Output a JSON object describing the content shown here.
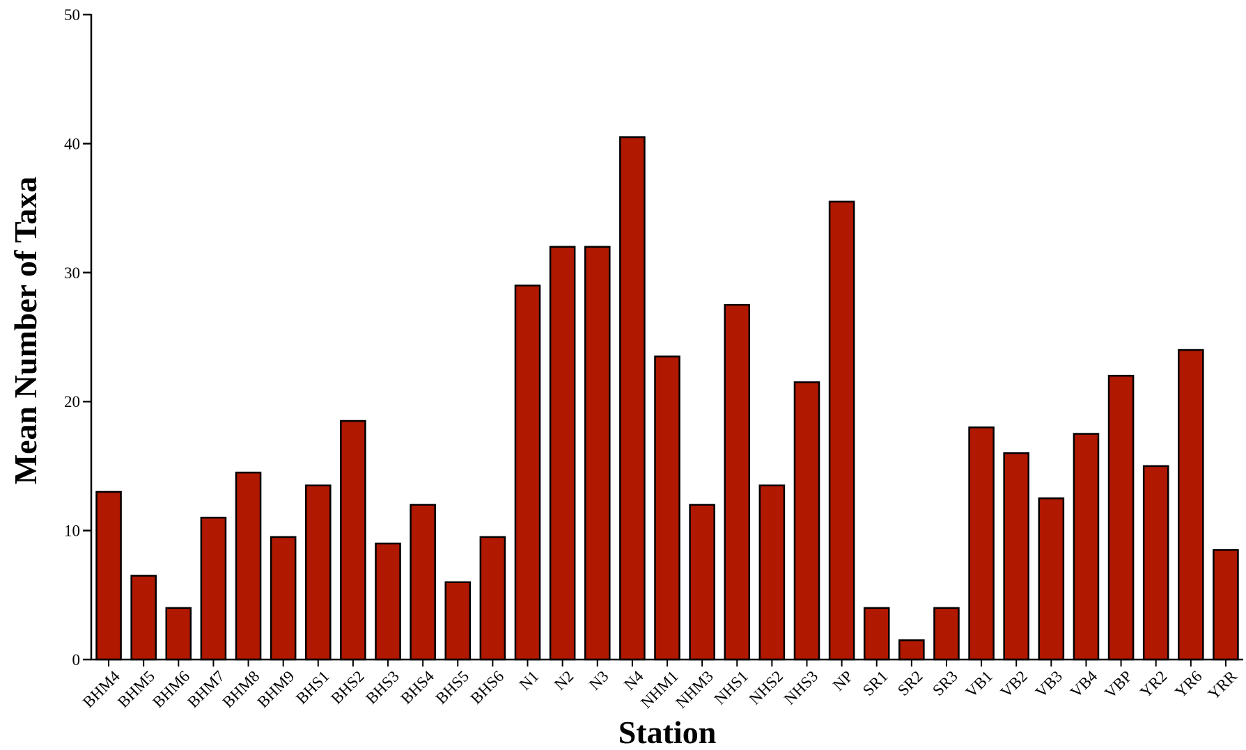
{
  "chart_data": {
    "type": "bar",
    "title": "",
    "xlabel": "Station",
    "ylabel": "Mean Number of Taxa",
    "ylim": [
      0,
      50
    ],
    "yticks": [
      0,
      10,
      20,
      30,
      40,
      50
    ],
    "bar_color": "#b01800",
    "categories": [
      "BHM4",
      "BHM5",
      "BHM6",
      "BHM7",
      "BHM8",
      "BHM9",
      "BHS1",
      "BHS2",
      "BHS3",
      "BHS4",
      "BHS5",
      "BHS6",
      "N1",
      "N2",
      "N3",
      "N4",
      "NHM1",
      "NHM3",
      "NHS1",
      "NHS2",
      "NHS3",
      "NP",
      "SR1",
      "SR2",
      "SR3",
      "VB1",
      "VB2",
      "VB3",
      "VB4",
      "VBP",
      "YR2",
      "YR6",
      "YRR"
    ],
    "values": [
      13,
      6.5,
      4,
      11,
      14.5,
      9.5,
      13.5,
      18.5,
      9,
      12,
      6,
      9.5,
      29,
      32,
      32,
      40.5,
      23.5,
      12,
      27.5,
      13.5,
      21.5,
      35.5,
      4,
      1.5,
      4,
      18,
      16,
      12.5,
      17.5,
      22,
      15,
      24,
      8.5
    ],
    "grid": false,
    "legend": "none"
  }
}
